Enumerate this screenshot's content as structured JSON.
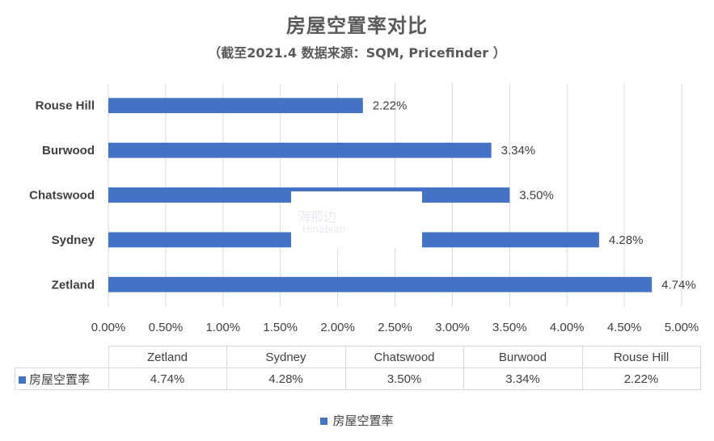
{
  "chart_data": {
    "type": "bar",
    "orientation": "horizontal",
    "title": "房屋空置率对比",
    "subtitle": "（截至2021.4  数据来源：SQM, Pricefinder ）",
    "categories": [
      "Rouse Hill",
      "Burwood",
      "Chatswood",
      "Sydney",
      "Zetland"
    ],
    "series": [
      {
        "name": "房屋空置率",
        "values": [
          2.22,
          3.34,
          3.5,
          4.28,
          4.74
        ]
      }
    ],
    "data_labels": [
      "2.22%",
      "3.34%",
      "3.50%",
      "4.28%",
      "4.74%"
    ],
    "xlim": [
      0,
      5
    ],
    "x_ticks": [
      0,
      0.5,
      1.0,
      1.5,
      2.0,
      2.5,
      3.0,
      3.5,
      4.0,
      4.5,
      5.0
    ],
    "x_tick_labels": [
      "0.00%",
      "0.50%",
      "1.00%",
      "1.50%",
      "2.00%",
      "2.50%",
      "3.00%",
      "3.50%",
      "4.00%",
      "4.50%",
      "5.00%"
    ],
    "grid": true,
    "legend": "bottom",
    "bar_color": "#4472c4",
    "data_table": {
      "headers": [
        "Zetland",
        "Sydney",
        "Chatswood",
        "Burwood",
        "Rouse Hill"
      ],
      "row_label": "房屋空置率",
      "values": [
        "4.74%",
        "4.28%",
        "3.50%",
        "3.34%",
        "2.22%"
      ]
    }
  },
  "watermark": {
    "text": "海那边",
    "sub": "Hinabian"
  }
}
